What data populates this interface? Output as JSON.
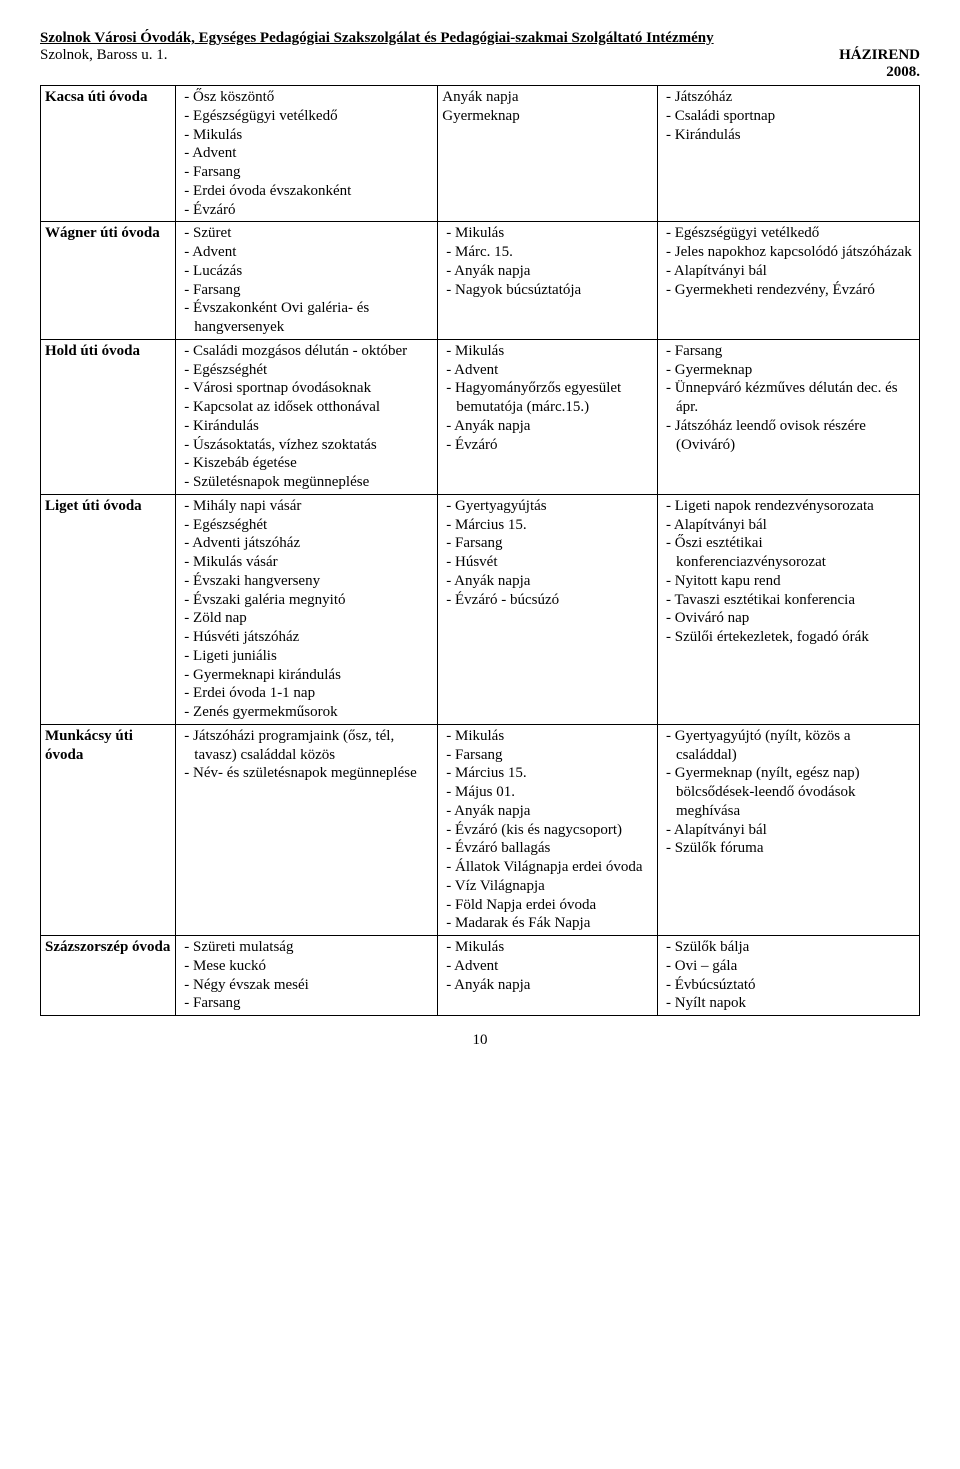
{
  "header": {
    "title": "Szolnok Városi Óvodák, Egységes Pedagógiai Szakszolgálat és Pedagógiai-szakmai Szolgáltató Intézmény",
    "addr": "Szolnok, Baross u. 1.",
    "hazirend": "HÁZIREND",
    "year": "2008."
  },
  "rows": [
    {
      "name": "Kacsa úti óvoda",
      "c2": [
        "Ősz köszöntő",
        "Egészségügyi vetélkedő",
        "Mikulás",
        "Advent",
        "Farsang",
        "Erdei óvoda évszakonként",
        "Évzáró"
      ],
      "c3": [
        "Anyák napja",
        "Gyermeknap"
      ],
      "c3_plain": true,
      "c4": [
        "Játszóház",
        "Családi sportnap",
        "Kirándulás"
      ]
    },
    {
      "name": "Wágner úti óvoda",
      "c2": [
        "Szüret",
        "Advent",
        "Lucázás",
        "Farsang",
        "Évszakonként Ovi galéria- és hangversenyek"
      ],
      "c3": [
        "Mikulás",
        "Márc. 15.",
        "Anyák napja",
        "Nagyok búcsúztatója"
      ],
      "c4": [
        "Egészségügyi vetélkedő",
        "Jeles napokhoz kapcsolódó játszóházak",
        "Alapítványi bál",
        "Gyermekheti rendezvény, Évzáró"
      ]
    },
    {
      "name": "Hold úti óvoda",
      "c2": [
        "Családi mozgásos délután - október",
        "Egészséghét",
        "Városi sportnap óvodásoknak",
        "Kapcsolat az idősek otthonával",
        "Kirándulás",
        "Úszásoktatás, vízhez szoktatás",
        "Kiszebáb égetése",
        "Születésnapok megünneplése"
      ],
      "c3": [
        "Mikulás",
        "Advent",
        "Hagyományőrzős egyesület bemutatója (márc.15.)",
        "Anyák napja",
        "Évzáró"
      ],
      "c4": [
        "Farsang",
        "Gyermeknap",
        "Ünnepváró kézműves délután dec. és ápr.",
        "Játszóház leendő ovisok részére (Oviváró)"
      ]
    },
    {
      "name": "Liget úti óvoda",
      "c2": [
        "Mihály napi vásár",
        "Egészséghét",
        "Adventi játszóház",
        "Mikulás vásár",
        "Évszaki hangverseny",
        "Évszaki galéria megnyitó",
        "Zöld nap",
        "Húsvéti játszóház",
        "Ligeti juniális",
        "Gyermeknapi kirándulás",
        "Erdei óvoda 1-1 nap",
        "Zenés gyermekműsorok"
      ],
      "c3": [
        "Gyertyagyújtás",
        "Március 15.",
        "Farsang",
        "Húsvét",
        "Anyák napja",
        "Évzáró - búcsúzó"
      ],
      "c4": [
        "Ligeti napok rendezvénysorozata",
        "Alapítványi bál",
        "Őszi esztétikai konferenciazvénysorozat",
        "Nyitott kapu rend",
        "Tavaszi esztétikai konferencia",
        "Oviváró nap",
        "Szülői értekezletek, fogadó órák"
      ]
    },
    {
      "name": "Munkácsy úti óvoda",
      "c2": [
        "Játszóházi programjaink (ősz, tél, tavasz) családdal közös",
        "Név- és születésnapok megünneplése"
      ],
      "c3": [
        "Mikulás",
        "Farsang",
        "Március 15.",
        "Május 01.",
        "Anyák napja",
        "Évzáró (kis és nagycsoport)",
        "Évzáró ballagás",
        "Állatok Világnapja erdei óvoda",
        "Víz Világnapja",
        "Föld Napja erdei óvoda",
        "Madarak és Fák Napja"
      ],
      "c4": [
        "Gyertyagyújtó (nyílt, közös a családdal)",
        "Gyermeknap (nyílt, egész nap) bölcsődések-leendő óvodások meghívása",
        "Alapítványi bál",
        "Szülők fóruma"
      ]
    },
    {
      "name": "Százszorszép óvoda",
      "c2": [
        "Szüreti mulatság",
        "Mese kuckó",
        "Négy évszak meséi",
        "Farsang"
      ],
      "c3": [
        "Mikulás",
        "Advent",
        "Anyák napja"
      ],
      "c4": [
        "Szülők bálja",
        "Ovi – gála",
        "Évbúcsúztató",
        "Nyílt napok"
      ]
    }
  ],
  "pagenum": "10"
}
